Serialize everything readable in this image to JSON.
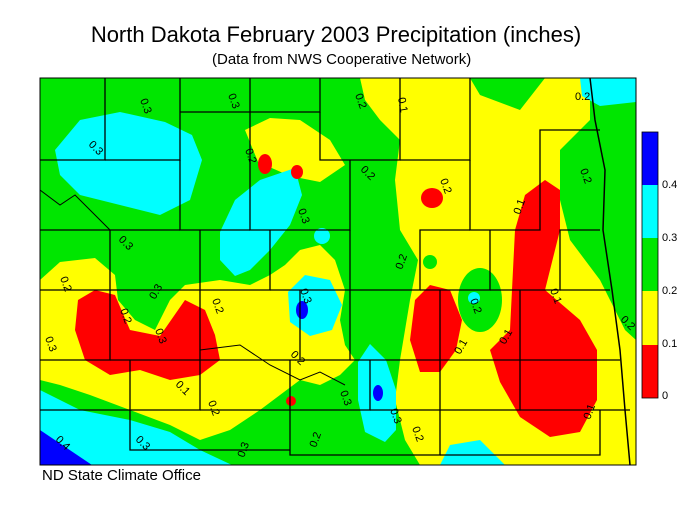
{
  "title": "North Dakota February 2003 Precipitation (inches)",
  "subtitle": "(Data from NWS Cooperative Network)",
  "credit": "ND State Climate Office",
  "legend": {
    "levels": [
      "0",
      "0.1",
      "0.2",
      "0.3",
      "0.4"
    ],
    "colors": [
      "#ff0000",
      "#ffff00",
      "#00e600",
      "#00ffff",
      "#0000ff"
    ]
  },
  "map": {
    "contour_labels": [
      "0.3",
      "0.3",
      "0.2",
      "0.1",
      "0.3",
      "0.3",
      "0.2",
      "0.2",
      "0.3",
      "0.3",
      "0.2",
      "0.2",
      "0.2",
      "0.3",
      "0.2",
      "0.1",
      "0.2",
      "0.1",
      "0.1",
      "0.3",
      "0.2",
      "0.3",
      "0.2",
      "0.1",
      "0.1",
      "0.2",
      "0.2",
      "0.3",
      "0.3",
      "0.2",
      "0.3",
      "0.3",
      "0.1",
      "0.2",
      "0.4",
      "0.2",
      "0.2"
    ]
  }
}
